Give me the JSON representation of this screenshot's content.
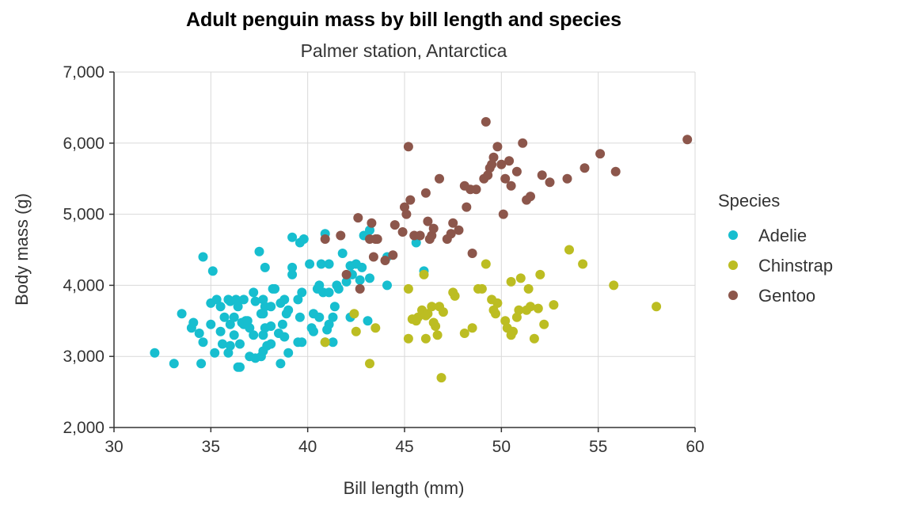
{
  "chart_data": {
    "type": "scatter",
    "title": "Adult penguin mass by bill length and species",
    "subtitle": "Palmer station, Antarctica",
    "xlabel": "Bill length (mm)",
    "ylabel": "Body mass (g)",
    "xlim": [
      30,
      60
    ],
    "ylim": [
      2000,
      7000
    ],
    "xticks": [
      30,
      35,
      40,
      45,
      50,
      55,
      60
    ],
    "yticks": [
      2000,
      3000,
      4000,
      5000,
      6000,
      7000
    ],
    "xtick_labels": [
      "30",
      "35",
      "40",
      "45",
      "50",
      "55",
      "60"
    ],
    "ytick_labels": [
      "2,000",
      "3,000",
      "4,000",
      "5,000",
      "6,000",
      "7,000"
    ],
    "grid": true,
    "legend": {
      "title": "Species",
      "position": "right"
    },
    "series": [
      {
        "name": "Adelie",
        "color": "#17becf",
        "points": [
          [
            32.1,
            3050
          ],
          [
            33.1,
            2900
          ],
          [
            33.5,
            3600
          ],
          [
            34.0,
            3400
          ],
          [
            34.1,
            3475
          ],
          [
            34.4,
            3325
          ],
          [
            34.5,
            2900
          ],
          [
            34.6,
            3200
          ],
          [
            34.6,
            4400
          ],
          [
            35.0,
            3450
          ],
          [
            35.0,
            3750
          ],
          [
            35.1,
            4200
          ],
          [
            35.2,
            3050
          ],
          [
            35.3,
            3800
          ],
          [
            35.5,
            3350
          ],
          [
            35.5,
            3700
          ],
          [
            35.6,
            3175
          ],
          [
            35.7,
            3550
          ],
          [
            35.9,
            3050
          ],
          [
            35.9,
            3800
          ],
          [
            36.0,
            3150
          ],
          [
            36.0,
            3450
          ],
          [
            36.0,
            3775
          ],
          [
            36.2,
            3300
          ],
          [
            36.2,
            3550
          ],
          [
            36.3,
            3800
          ],
          [
            36.4,
            2850
          ],
          [
            36.4,
            3700
          ],
          [
            36.5,
            2850
          ],
          [
            36.5,
            3175
          ],
          [
            36.6,
            3475
          ],
          [
            36.7,
            3450
          ],
          [
            36.7,
            3800
          ],
          [
            36.8,
            3500
          ],
          [
            36.9,
            3500
          ],
          [
            37.0,
            3000
          ],
          [
            37.0,
            3400
          ],
          [
            37.2,
            3300
          ],
          [
            37.2,
            3900
          ],
          [
            37.3,
            2975
          ],
          [
            37.3,
            3775
          ],
          [
            37.5,
            4475
          ],
          [
            37.6,
            3000
          ],
          [
            37.6,
            3600
          ],
          [
            37.7,
            3075
          ],
          [
            37.7,
            3300
          ],
          [
            37.7,
            3600
          ],
          [
            37.7,
            3800
          ],
          [
            37.8,
            3400
          ],
          [
            37.8,
            3700
          ],
          [
            37.8,
            4250
          ],
          [
            37.9,
            3150
          ],
          [
            38.1,
            3175
          ],
          [
            38.1,
            3425
          ],
          [
            38.1,
            3700
          ],
          [
            38.2,
            3950
          ],
          [
            38.3,
            3950
          ],
          [
            38.5,
            3325
          ],
          [
            38.6,
            2900
          ],
          [
            38.6,
            3750
          ],
          [
            38.7,
            3450
          ],
          [
            38.8,
            3275
          ],
          [
            38.8,
            3800
          ],
          [
            38.9,
            3600
          ],
          [
            39.0,
            3050
          ],
          [
            39.0,
            3650
          ],
          [
            39.2,
            4150
          ],
          [
            39.2,
            4250
          ],
          [
            39.2,
            4675
          ],
          [
            39.5,
            3200
          ],
          [
            39.5,
            3800
          ],
          [
            39.6,
            3550
          ],
          [
            39.6,
            4600
          ],
          [
            39.7,
            3200
          ],
          [
            39.7,
            3900
          ],
          [
            39.8,
            4650
          ],
          [
            40.1,
            4300
          ],
          [
            40.2,
            3400
          ],
          [
            40.3,
            3350
          ],
          [
            40.3,
            3600
          ],
          [
            40.5,
            3950
          ],
          [
            40.6,
            3550
          ],
          [
            40.6,
            4000
          ],
          [
            40.7,
            4300
          ],
          [
            40.8,
            3900
          ],
          [
            40.9,
            3200
          ],
          [
            40.9,
            4725
          ],
          [
            41.0,
            3375
          ],
          [
            41.1,
            3450
          ],
          [
            41.1,
            3900
          ],
          [
            41.1,
            4300
          ],
          [
            41.3,
            3200
          ],
          [
            41.3,
            3550
          ],
          [
            41.4,
            3700
          ],
          [
            41.5,
            4000
          ],
          [
            41.6,
            3950
          ],
          [
            41.8,
            4450
          ],
          [
            42.0,
            4050
          ],
          [
            42.2,
            3550
          ],
          [
            42.2,
            4275
          ],
          [
            42.3,
            4150
          ],
          [
            42.5,
            4300
          ],
          [
            42.7,
            4075
          ],
          [
            42.8,
            4250
          ],
          [
            42.9,
            4700
          ],
          [
            43.1,
            3500
          ],
          [
            43.2,
            4100
          ],
          [
            43.2,
            4775
          ],
          [
            44.1,
            4000
          ],
          [
            44.1,
            4400
          ],
          [
            45.6,
            4600
          ],
          [
            46.0,
            4200
          ]
        ]
      },
      {
        "name": "Chinstrap",
        "color": "#bcbd22",
        "points": [
          [
            40.9,
            3200
          ],
          [
            42.4,
            3600
          ],
          [
            42.5,
            3350
          ],
          [
            43.2,
            2900
          ],
          [
            43.5,
            3400
          ],
          [
            45.2,
            3250
          ],
          [
            45.2,
            3950
          ],
          [
            45.4,
            3525
          ],
          [
            45.6,
            3500
          ],
          [
            45.7,
            3550
          ],
          [
            45.9,
            3650
          ],
          [
            46.0,
            4150
          ],
          [
            46.1,
            3250
          ],
          [
            46.1,
            3575
          ],
          [
            46.2,
            3600
          ],
          [
            46.4,
            3700
          ],
          [
            46.5,
            3475
          ],
          [
            46.6,
            3425
          ],
          [
            46.7,
            3300
          ],
          [
            46.8,
            3700
          ],
          [
            46.9,
            2700
          ],
          [
            47.0,
            3625
          ],
          [
            47.5,
            3900
          ],
          [
            47.6,
            3850
          ],
          [
            48.1,
            3325
          ],
          [
            48.5,
            3400
          ],
          [
            48.8,
            3950
          ],
          [
            49.0,
            3950
          ],
          [
            49.2,
            4300
          ],
          [
            49.5,
            3800
          ],
          [
            49.6,
            3650
          ],
          [
            49.7,
            3600
          ],
          [
            49.8,
            3750
          ],
          [
            50.2,
            3500
          ],
          [
            50.3,
            3400
          ],
          [
            50.5,
            3300
          ],
          [
            50.5,
            4050
          ],
          [
            50.6,
            3350
          ],
          [
            50.8,
            3550
          ],
          [
            50.9,
            3650
          ],
          [
            51.0,
            4100
          ],
          [
            51.3,
            3650
          ],
          [
            51.4,
            3950
          ],
          [
            51.5,
            3700
          ],
          [
            51.7,
            3250
          ],
          [
            51.9,
            3675
          ],
          [
            52.0,
            4150
          ],
          [
            52.2,
            3450
          ],
          [
            52.7,
            3725
          ],
          [
            53.5,
            4500
          ],
          [
            54.2,
            4300
          ],
          [
            55.8,
            4000
          ],
          [
            58.0,
            3700
          ]
        ]
      },
      {
        "name": "Gentoo",
        "color": "#8c564b",
        "points": [
          [
            40.9,
            4650
          ],
          [
            41.7,
            4700
          ],
          [
            42.0,
            4150
          ],
          [
            42.6,
            4950
          ],
          [
            42.7,
            3950
          ],
          [
            43.2,
            4650
          ],
          [
            43.3,
            4875
          ],
          [
            43.4,
            4400
          ],
          [
            43.5,
            4650
          ],
          [
            43.6,
            4650
          ],
          [
            44.0,
            4350
          ],
          [
            44.4,
            4425
          ],
          [
            44.5,
            4850
          ],
          [
            44.9,
            4750
          ],
          [
            45.0,
            5100
          ],
          [
            45.1,
            5000
          ],
          [
            45.2,
            5950
          ],
          [
            45.3,
            5200
          ],
          [
            45.5,
            4700
          ],
          [
            45.8,
            4700
          ],
          [
            46.1,
            5300
          ],
          [
            46.2,
            4900
          ],
          [
            46.3,
            4650
          ],
          [
            46.4,
            4700
          ],
          [
            46.5,
            4800
          ],
          [
            46.8,
            5500
          ],
          [
            47.2,
            4650
          ],
          [
            47.4,
            4725
          ],
          [
            47.5,
            4875
          ],
          [
            47.8,
            4775
          ],
          [
            48.1,
            5400
          ],
          [
            48.2,
            5100
          ],
          [
            48.4,
            5350
          ],
          [
            48.5,
            4450
          ],
          [
            48.7,
            5350
          ],
          [
            49.1,
            5500
          ],
          [
            49.2,
            6300
          ],
          [
            49.3,
            5550
          ],
          [
            49.4,
            5650
          ],
          [
            49.5,
            5700
          ],
          [
            49.6,
            5800
          ],
          [
            49.8,
            5950
          ],
          [
            50.0,
            5700
          ],
          [
            50.1,
            5000
          ],
          [
            50.2,
            5500
          ],
          [
            50.4,
            5750
          ],
          [
            50.5,
            5400
          ],
          [
            50.8,
            5600
          ],
          [
            51.1,
            6000
          ],
          [
            51.3,
            5200
          ],
          [
            51.5,
            5250
          ],
          [
            52.1,
            5550
          ],
          [
            52.5,
            5450
          ],
          [
            53.4,
            5500
          ],
          [
            54.3,
            5650
          ],
          [
            55.1,
            5850
          ],
          [
            55.9,
            5600
          ],
          [
            59.6,
            6050
          ]
        ]
      }
    ]
  }
}
